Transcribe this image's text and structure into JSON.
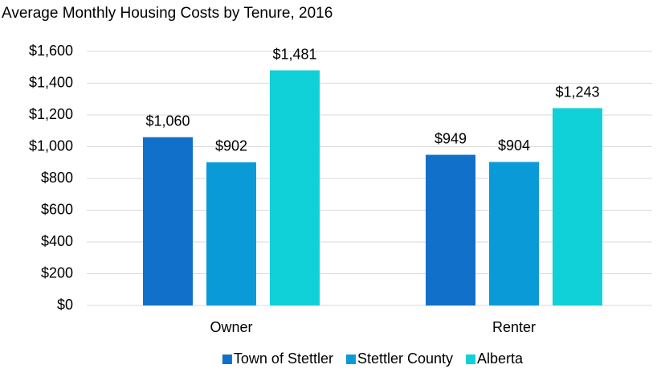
{
  "chart_data": {
    "type": "bar",
    "title": "Average Monthly Housing Costs by Tenure, 2016",
    "categories": [
      "Owner",
      "Renter"
    ],
    "series": [
      {
        "name": "Town of Stettler",
        "color": "#1170c9",
        "values": [
          1060,
          949
        ],
        "value_labels": [
          "$1,060",
          "$949"
        ]
      },
      {
        "name": "Stettler County",
        "color": "#0a9ad8",
        "values": [
          902,
          904
        ],
        "value_labels": [
          "$902",
          "$904"
        ]
      },
      {
        "name": "Alberta",
        "color": "#10d0d8",
        "values": [
          1481,
          1243
        ],
        "value_labels": [
          "$1,481",
          "$1,243"
        ]
      }
    ],
    "ylim": [
      0,
      1600
    ],
    "yticks": [
      {
        "value": 0,
        "label": "$0"
      },
      {
        "value": 200,
        "label": "$200"
      },
      {
        "value": 400,
        "label": "$400"
      },
      {
        "value": 600,
        "label": "$600"
      },
      {
        "value": 800,
        "label": "$800"
      },
      {
        "value": 1000,
        "label": "$1,000"
      },
      {
        "value": 1200,
        "label": "$1,200"
      },
      {
        "value": 1400,
        "label": "$1,400"
      },
      {
        "value": 1600,
        "label": "$1,600"
      }
    ],
    "grid": true,
    "legend": "bottom"
  }
}
